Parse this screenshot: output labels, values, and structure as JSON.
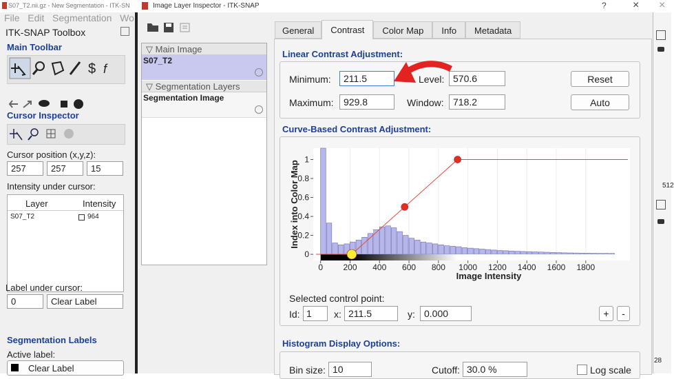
{
  "main_window": {
    "title": "S07_T2.nii.gz - New Segmentation - ITK-SN",
    "close": "×",
    "menu": [
      "File",
      "Edit",
      "Segmentation",
      "Wo"
    ],
    "toolbox_title": "ITK-SNAP Toolbox",
    "main_toolbar": "Main Toolbar",
    "cursor_inspector": "Cursor Inspector",
    "cursor_position_label": "Cursor position (x,y,z):",
    "cursor_position": [
      "257",
      "257",
      "15"
    ],
    "intensity_label": "Intensity under cursor:",
    "table": {
      "headers": [
        "Layer",
        "Intensity"
      ],
      "rows": [
        [
          "S07_T2",
          "964"
        ]
      ]
    },
    "label_under_cursor": "Label under cursor:",
    "label_value": [
      "0",
      "Clear Label"
    ],
    "segmentation_labels": "Segmentation Labels",
    "active_label": "Active label:",
    "active_label_value": "Clear Label",
    "side_values": [
      "512",
      "28"
    ]
  },
  "dialog": {
    "title": "Image Layer Inspector - ITK-SNAP",
    "help": "?",
    "close": "×",
    "layers": [
      {
        "group": "Main Image",
        "name": "S07_T2"
      },
      {
        "group": "Segmentation Layers",
        "name": "Segmentation Image"
      }
    ],
    "tabs": [
      "General",
      "Contrast",
      "Color Map",
      "Info",
      "Metadata"
    ],
    "linear": {
      "title": "Linear Contrast Adjustment:",
      "minimum_label": "Minimum:",
      "minimum": "211.5",
      "level_label": "Level:",
      "level": "570.6",
      "maximum_label": "Maximum:",
      "maximum": "929.8",
      "window_label": "Window:",
      "window": "718.2",
      "reset": "Reset",
      "auto": "Auto"
    },
    "curve_title": "Curve-Based Contrast Adjustment:",
    "selected": {
      "title": "Selected control point:",
      "id_label": "Id:",
      "id": "1",
      "x_label": "x:",
      "x": "211.5",
      "y_label": "y:",
      "y": "0.000",
      "add": "+",
      "remove": "-"
    },
    "histogram_options": {
      "title": "Histogram Display Options:",
      "bin_size_label": "Bin size:",
      "bin_size": "10",
      "cutoff_label": "Cutoff:",
      "cutoff": "30.0 %",
      "log_scale_label": "Log scale"
    }
  },
  "chart_data": {
    "type": "histogram",
    "xlabel": "Image Intensity",
    "ylabel": "Index into Color Map",
    "bins": [
      0,
      40,
      80,
      120,
      160,
      200,
      240,
      280,
      320,
      360,
      400,
      440,
      480,
      520,
      560,
      600,
      640,
      680,
      720,
      760,
      800,
      840,
      880,
      920,
      960,
      1000,
      1040,
      1080,
      1120,
      1160,
      1200,
      1240,
      1280,
      1320,
      1360,
      1400,
      1440,
      1480,
      1520,
      1560,
      1600,
      1640,
      1680,
      1720,
      1760,
      1800,
      1840,
      1880,
      1920,
      1960,
      2000
    ],
    "counts": [
      1.12,
      0.33,
      0.12,
      0.1,
      0.11,
      0.13,
      0.15,
      0.18,
      0.22,
      0.26,
      0.29,
      0.3,
      0.28,
      0.24,
      0.2,
      0.17,
      0.15,
      0.13,
      0.12,
      0.11,
      0.1,
      0.09,
      0.085,
      0.08,
      0.07,
      0.065,
      0.06,
      0.055,
      0.05,
      0.045,
      0.04,
      0.038,
      0.035,
      0.032,
      0.03,
      0.028,
      0.026,
      0.024,
      0.022,
      0.02,
      0.018,
      0.016,
      0.015,
      0.014,
      0.013,
      0.012,
      0.011,
      0.01,
      0.01,
      0.009
    ],
    "color": "#b6b6ea",
    "edge_color": "#6c6cb0",
    "curve": {
      "x": [
        211.5,
        570.6,
        929.8
      ],
      "y": [
        0,
        0.5,
        1
      ],
      "color": "#e8473c",
      "point_colors": [
        "#ffee33",
        "#e32d22",
        "#e32d22"
      ]
    },
    "xlim": [
      -50,
      2100
    ],
    "ylim": [
      -0.065,
      1.12
    ],
    "xticks": [
      0,
      200,
      400,
      600,
      800,
      1000,
      1200,
      1400,
      1600,
      1800
    ],
    "yticks": [
      0,
      0.2,
      0.4,
      0.6,
      0.8,
      1
    ],
    "grid": true
  }
}
